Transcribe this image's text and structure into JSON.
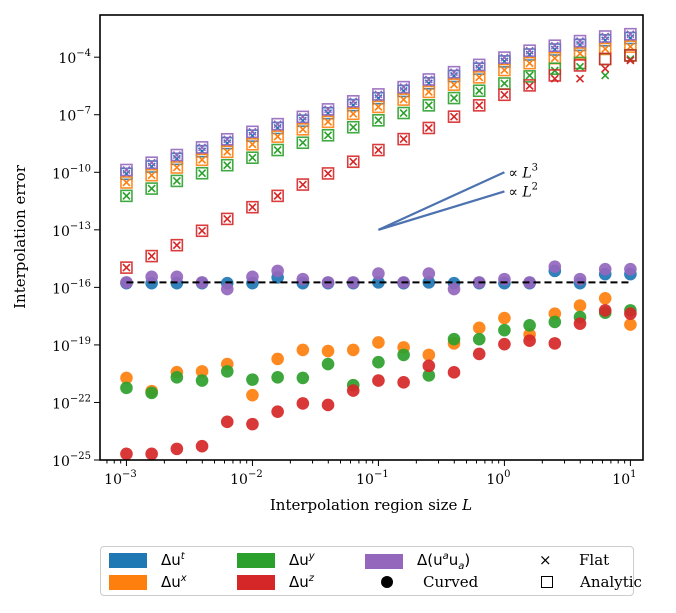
{
  "chart_data": {
    "type": "scatter",
    "xscale": "log",
    "yscale": "log",
    "xlabel": "Interpolation region size",
    "xlabel_var": "L",
    "ylabel": "Interpolation error",
    "xlim_log10": [
      -3.21,
      1.1
    ],
    "ylim_log10": [
      -25,
      -1.8
    ],
    "x_log10": [
      -3,
      -2.8,
      -2.6,
      -2.4,
      -2.2,
      -2,
      -1.8,
      -1.6,
      -1.4,
      -1.2,
      -1,
      -0.8,
      -0.6,
      -0.4,
      -0.2,
      0,
      0.2,
      0.4,
      0.6,
      0.8,
      1
    ],
    "xticks": [
      {
        "base": "10",
        "exp": "−3",
        "v": -3
      },
      {
        "base": "10",
        "exp": "−2",
        "v": -2
      },
      {
        "base": "10",
        "exp": "−1",
        "v": -1
      },
      {
        "base": "10",
        "exp": "0",
        "v": 0
      },
      {
        "base": "10",
        "exp": "1",
        "v": 1
      }
    ],
    "yticks": [
      {
        "base": "10",
        "exp": "−4",
        "v": -4
      },
      {
        "base": "10",
        "exp": "−7",
        "v": -7
      },
      {
        "base": "10",
        "exp": "−10",
        "v": -10
      },
      {
        "base": "10",
        "exp": "−13",
        "v": -13
      },
      {
        "base": "10",
        "exp": "−16",
        "v": -16
      },
      {
        "base": "10",
        "exp": "−19",
        "v": -19
      },
      {
        "base": "10",
        "exp": "−22",
        "v": -22
      },
      {
        "base": "10",
        "exp": "−25",
        "v": -25
      }
    ],
    "series": [
      {
        "name": "Δu^t",
        "color": "#1f77b4",
        "analytic": [
          -10.08,
          -9.7,
          -9.3,
          -8.9,
          -8.48,
          -8.09,
          -7.69,
          -7.31,
          -6.92,
          -6.5,
          -6.14,
          -5.76,
          -5.36,
          -4.98,
          -4.6,
          -4.22,
          -3.86,
          -3.6,
          -3.36,
          -3.12,
          -3.0
        ],
        "flat": [
          -10.08,
          -9.7,
          -9.3,
          -8.9,
          -8.48,
          -8.09,
          -7.69,
          -7.31,
          -6.92,
          -6.5,
          -6.14,
          -5.76,
          -5.36,
          -4.98,
          -4.6,
          -4.22,
          -3.86,
          -3.6,
          -3.36,
          -3.12,
          -3.0
        ],
        "curved": [
          -15.78,
          -15.78,
          -15.78,
          -15.78,
          -15.78,
          -15.78,
          -15.48,
          -15.78,
          -15.78,
          -15.78,
          -15.74,
          -15.78,
          -15.74,
          -15.78,
          -15.78,
          -15.78,
          -15.78,
          -15.14,
          -15.78,
          -15.31,
          -15.31
        ]
      },
      {
        "name": "Δu^x",
        "color": "#ff7f0e",
        "analytic": [
          -10.53,
          -10.15,
          -9.75,
          -9.35,
          -8.93,
          -8.54,
          -8.14,
          -7.76,
          -7.37,
          -6.95,
          -6.59,
          -6.21,
          -5.81,
          -5.43,
          -5.05,
          -4.67,
          -4.31,
          -4.05,
          -3.81,
          -3.57,
          -3.45
        ],
        "flat": [
          -10.53,
          -10.15,
          -9.75,
          -9.35,
          -8.93,
          -8.54,
          -8.14,
          -7.76,
          -7.37,
          -6.95,
          -6.59,
          -6.21,
          -5.81,
          -5.43,
          -5.05,
          -4.67,
          -4.31,
          -4.05,
          -3.81,
          -3.57,
          -3.45
        ],
        "curved": [
          -20.72,
          -21.41,
          -20.42,
          -20.38,
          -20.0,
          -21.62,
          -19.73,
          -19.26,
          -19.32,
          -19.26,
          -18.87,
          -19.13,
          -19.52,
          -18.92,
          -18.11,
          -17.6,
          -18.46,
          -17.37,
          -16.95,
          -16.57,
          -17.94
        ]
      },
      {
        "name": "Δu^y",
        "color": "#2ca02c",
        "analytic": [
          -11.23,
          -10.85,
          -10.45,
          -10.05,
          -9.63,
          -9.24,
          -8.84,
          -8.46,
          -8.07,
          -7.65,
          -7.29,
          -6.91,
          -6.51,
          -6.13,
          -5.75,
          -5.37,
          -5.0,
          -4.6,
          -4.3,
          -4.1,
          -3.9
        ],
        "flat": [
          -11.23,
          -10.85,
          -10.45,
          -10.05,
          -9.63,
          -9.24,
          -8.84,
          -8.46,
          -8.07,
          -7.65,
          -7.29,
          -6.91,
          -6.51,
          -6.13,
          -5.75,
          -5.37,
          -4.95,
          -4.7,
          -4.5,
          -4.95,
          -4.1
        ],
        "curved": [
          -21.24,
          -21.5,
          -20.69,
          -20.86,
          -20.38,
          -20.81,
          -20.69,
          -20.72,
          -20.0,
          -21.1,
          -19.9,
          -19.52,
          -20.59,
          -18.7,
          -18.7,
          -18.23,
          -17.98,
          -17.8,
          -17.55,
          -17.32,
          -17.2
        ]
      },
      {
        "name": "Δu^z",
        "color": "#d62728",
        "analytic": [
          -14.97,
          -14.37,
          -13.8,
          -13.05,
          -12.43,
          -11.82,
          -11.23,
          -10.64,
          -10.06,
          -9.45,
          -8.84,
          -8.27,
          -7.69,
          -7.1,
          -6.51,
          -5.96,
          -5.47,
          -4.95,
          -4.43,
          -4.09,
          -3.91
        ],
        "flat": [
          -14.97,
          -14.37,
          -13.8,
          -13.05,
          -12.43,
          -11.82,
          -11.23,
          -10.64,
          -10.06,
          -9.45,
          -8.84,
          -8.27,
          -7.69,
          -7.1,
          -6.51,
          -5.96,
          -5.5,
          -5.12,
          -5.12,
          -4.6,
          -4.17
        ],
        "curved": [
          -24.68,
          -24.68,
          -24.42,
          -24.28,
          -23.01,
          -23.13,
          -22.48,
          -22.05,
          -22.13,
          -21.38,
          -20.86,
          -20.95,
          -20.09,
          -20.43,
          -19.47,
          -18.96,
          -18.78,
          -18.92,
          -17.89,
          -17.2,
          -17.37
        ]
      },
      {
        "name": "Δ(u^a u_a)",
        "color": "#9467bd",
        "analytic": [
          -9.88,
          -9.5,
          -9.1,
          -8.7,
          -8.28,
          -7.89,
          -7.49,
          -7.11,
          -6.72,
          -6.3,
          -5.94,
          -5.56,
          -5.16,
          -4.78,
          -4.4,
          -4.02,
          -3.66,
          -3.4,
          -3.16,
          -2.92,
          -2.8
        ],
        "flat": [
          -9.88,
          -9.5,
          -9.1,
          -8.7,
          -8.28,
          -7.89,
          -7.49,
          -7.11,
          -6.72,
          -6.3,
          -5.94,
          -5.56,
          -5.16,
          -4.78,
          -4.4,
          -4.02,
          -3.66,
          -3.4,
          -3.16,
          -2.92,
          -2.8
        ],
        "curved": [
          -15.74,
          -15.45,
          -15.45,
          -15.74,
          -16.09,
          -15.45,
          -15.14,
          -15.57,
          -15.74,
          -15.74,
          -15.28,
          -15.74,
          -15.28,
          -16.09,
          -15.74,
          -15.57,
          -15.74,
          -14.92,
          -15.57,
          -15.05,
          -15.05
        ]
      }
    ],
    "hline": {
      "y_log10": -15.74,
      "x_log10": [
        -3,
        1
      ],
      "style": "dashed",
      "color": "#000000"
    },
    "reference_lines": [
      {
        "label": "∝ L",
        "exp": "3",
        "x_log10": [
          -1,
          0
        ],
        "y_log10": [
          -13,
          -10
        ],
        "color": "#4c72b0"
      },
      {
        "label": "∝ L",
        "exp": "2",
        "x_log10": [
          -1,
          0
        ],
        "y_log10": [
          -13,
          -11
        ],
        "color": "#4c72b0"
      }
    ]
  },
  "legend": {
    "placement": "below",
    "entries": [
      {
        "base": "Δu",
        "sup": "t",
        "color": "#1f77b4"
      },
      {
        "base": "Δu",
        "sup": "x",
        "color": "#ff7f0e"
      },
      {
        "base": "Δu",
        "sup": "y",
        "color": "#2ca02c"
      },
      {
        "base": "Δu",
        "sup": "z",
        "color": "#d62728"
      }
    ],
    "combo": {
      "open": "Δ(u",
      "sup": "a",
      "mid": "u",
      "sub": "a",
      "close": ")",
      "color": "#9467bd"
    },
    "markers": [
      {
        "symbol": "×",
        "label": "Flat"
      },
      {
        "symbol": "●",
        "label": "Curved"
      },
      {
        "symbol": "□",
        "label": "Analytic"
      }
    ]
  }
}
